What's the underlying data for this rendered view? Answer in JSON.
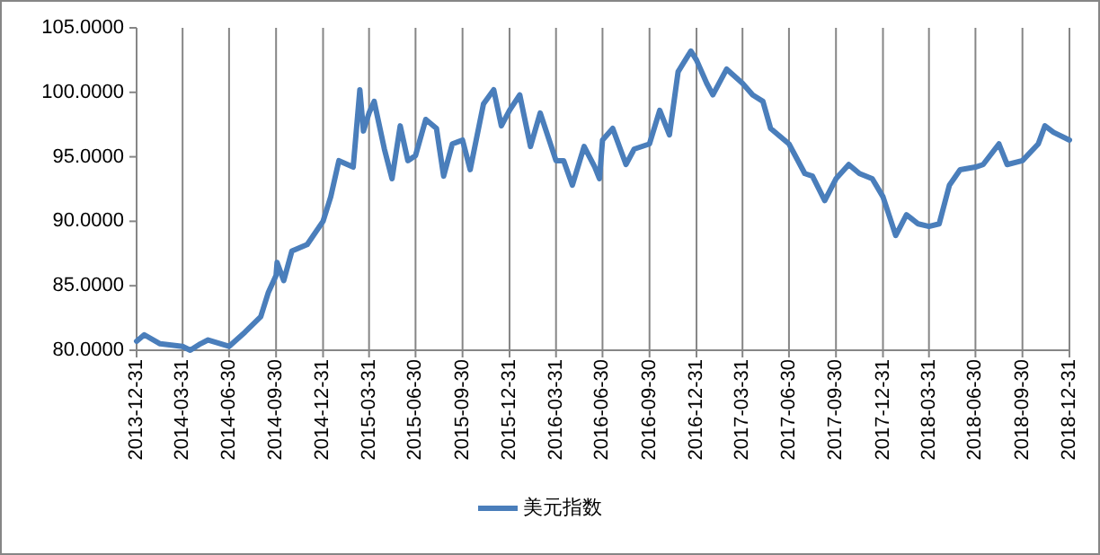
{
  "chart_data": {
    "type": "line",
    "x": [
      "2013-12-31",
      "2014-01-15",
      "2014-02-15",
      "2014-03-31",
      "2014-04-15",
      "2014-05-05",
      "2014-05-20",
      "2014-06-30",
      "2014-07-31",
      "2014-08-31",
      "2014-09-15",
      "2014-09-30",
      "2014-10-02",
      "2014-10-15",
      "2014-10-31",
      "2014-11-30",
      "2014-12-31",
      "2015-01-15",
      "2015-01-31",
      "2015-02-28",
      "2015-03-13",
      "2015-03-20",
      "2015-03-31",
      "2015-04-10",
      "2015-04-30",
      "2015-05-15",
      "2015-05-31",
      "2015-06-15",
      "2015-06-30",
      "2015-07-20",
      "2015-08-10",
      "2015-08-24",
      "2015-09-10",
      "2015-09-30",
      "2015-10-15",
      "2015-11-10",
      "2015-11-30",
      "2015-12-15",
      "2015-12-31",
      "2016-01-20",
      "2016-02-10",
      "2016-02-29",
      "2016-03-31",
      "2016-04-15",
      "2016-05-02",
      "2016-05-25",
      "2016-06-15",
      "2016-06-24",
      "2016-06-30",
      "2016-07-20",
      "2016-08-15",
      "2016-08-31",
      "2016-09-30",
      "2016-10-20",
      "2016-11-08",
      "2016-11-25",
      "2016-12-20",
      "2016-12-31",
      "2017-01-20",
      "2017-02-01",
      "2017-02-28",
      "2017-03-31",
      "2017-04-20",
      "2017-05-10",
      "2017-05-25",
      "2017-06-30",
      "2017-07-31",
      "2017-08-15",
      "2017-09-08",
      "2017-09-30",
      "2017-10-25",
      "2017-11-15",
      "2017-12-10",
      "2017-12-31",
      "2018-01-25",
      "2018-02-15",
      "2018-03-10",
      "2018-03-31",
      "2018-04-20",
      "2018-05-10",
      "2018-05-31",
      "2018-06-30",
      "2018-07-15",
      "2018-08-15",
      "2018-08-31",
      "2018-09-30",
      "2018-10-31",
      "2018-11-13",
      "2018-11-30",
      "2018-12-31"
    ],
    "series": [
      {
        "name": "美元指数",
        "color": "#4a7ebb",
        "values": [
          80.7,
          81.2,
          80.5,
          80.3,
          80.0,
          80.5,
          80.8,
          80.3,
          81.4,
          82.6,
          84.5,
          85.8,
          86.8,
          85.4,
          87.7,
          88.2,
          90.0,
          91.9,
          94.7,
          94.2,
          100.2,
          97.0,
          98.4,
          99.3,
          95.6,
          93.3,
          97.4,
          94.7,
          95.1,
          97.9,
          97.2,
          93.5,
          96.0,
          96.3,
          94.0,
          99.1,
          100.2,
          97.4,
          98.6,
          99.8,
          95.8,
          98.4,
          94.7,
          94.7,
          92.8,
          95.8,
          94.2,
          93.3,
          96.3,
          97.2,
          94.4,
          95.6,
          96.0,
          98.6,
          96.7,
          101.6,
          103.2,
          102.5,
          100.7,
          99.8,
          101.8,
          100.7,
          99.8,
          99.3,
          97.2,
          96.0,
          93.7,
          93.5,
          91.6,
          93.3,
          94.4,
          93.7,
          93.3,
          91.9,
          88.9,
          90.5,
          89.8,
          89.6,
          89.8,
          92.8,
          94.0,
          94.2,
          94.4,
          96.0,
          94.4,
          94.7,
          96.0,
          97.4,
          96.9,
          96.3
        ]
      }
    ],
    "xlim": [
      "2013-12-31",
      "2018-12-31"
    ],
    "xticks": [
      "2013-12-31",
      "2014-03-31",
      "2014-06-30",
      "2014-09-30",
      "2014-12-31",
      "2015-03-31",
      "2015-06-30",
      "2015-09-30",
      "2015-12-31",
      "2016-03-31",
      "2016-06-30",
      "2016-09-30",
      "2016-12-31",
      "2017-03-31",
      "2017-06-30",
      "2017-09-30",
      "2017-12-31",
      "2018-03-31",
      "2018-06-30",
      "2018-09-30",
      "2018-12-31"
    ],
    "ylim": [
      80,
      105
    ],
    "yticks": [
      {
        "value": 80,
        "label": "80.0000"
      },
      {
        "value": 85,
        "label": "85.0000"
      },
      {
        "value": 90,
        "label": "90.0000"
      },
      {
        "value": 95,
        "label": "95.0000"
      },
      {
        "value": 100,
        "label": "100.0000"
      },
      {
        "value": 105,
        "label": "105.0000"
      }
    ],
    "grid": "x",
    "legend": "bottom",
    "marker": "none",
    "line_style": "solid"
  }
}
